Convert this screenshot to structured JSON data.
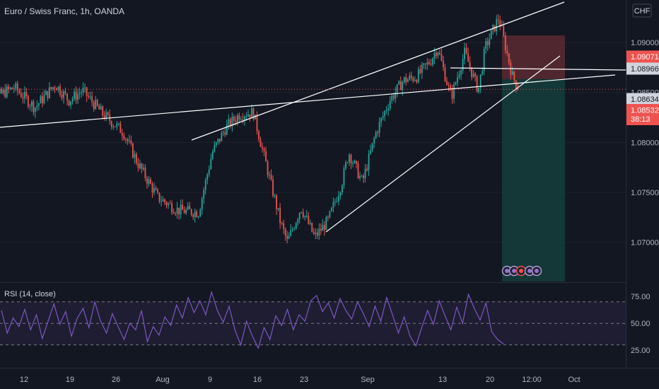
{
  "header": {
    "title": "Euro / Swiss Franc, 1h, OANDA",
    "currency": "CHF"
  },
  "colors": {
    "background": "#131722",
    "up": "#26a69a",
    "down": "#ef5350",
    "rsi_line": "#7e57c2",
    "trendline": "#ffffff",
    "current_price_line": "#ef5350",
    "stop_zone": "#5d2a31",
    "target_zone": "#153b3a"
  },
  "chart_data": [
    {
      "type": "candlestick",
      "title": "Euro / Swiss Franc, 1h, OANDA",
      "x_tick_labels": [
        "12",
        "19",
        "26",
        "Aug",
        "9",
        "16",
        "23",
        "Sep",
        "13",
        "20",
        "12:00",
        "Oct"
      ],
      "y_tick_labels": [
        "1.07000",
        "1.07500",
        "1.08000",
        "1.08500",
        "1.09000"
      ],
      "ylim": [
        1.0665,
        1.0927
      ],
      "price_labels": [
        {
          "name": "stop-level",
          "value": "1.09071",
          "color": "#ef5350"
        },
        {
          "name": "horizontal-line",
          "value": "1.08966",
          "color": "#d1d4dc"
        },
        {
          "name": "entry-level",
          "value": "1.08634",
          "color": "#d1d4dc"
        },
        {
          "name": "last-price",
          "value": "1.08532",
          "color": "#ef5350"
        }
      ],
      "countdown": "38:13",
      "close_path": [
        {
          "x": "Jul 06",
          "y": 1.09
        },
        {
          "x": "Jul 08",
          "y": 1.0845
        },
        {
          "x": "Jul 11",
          "y": 1.0855
        },
        {
          "x": "Jul 14",
          "y": 1.0835
        },
        {
          "x": "Jul 17",
          "y": 1.0858
        },
        {
          "x": "Jul 19",
          "y": 1.0842
        },
        {
          "x": "Jul 21",
          "y": 1.0852
        },
        {
          "x": "Jul 24",
          "y": 1.0828
        },
        {
          "x": "Jul 27",
          "y": 1.081
        },
        {
          "x": "Jul 29",
          "y": 1.078
        },
        {
          "x": "Aug 01",
          "y": 1.0745
        },
        {
          "x": "Aug 04",
          "y": 1.0732
        },
        {
          "x": "Aug 07",
          "y": 1.073
        },
        {
          "x": "Aug 09",
          "y": 1.079
        },
        {
          "x": "Aug 11",
          "y": 1.0815
        },
        {
          "x": "Aug 13",
          "y": 1.0828
        },
        {
          "x": "Aug 15",
          "y": 1.083
        },
        {
          "x": "Aug 17",
          "y": 1.0775
        },
        {
          "x": "Aug 19",
          "y": 1.072
        },
        {
          "x": "Aug 20",
          "y": 1.07
        },
        {
          "x": "Aug 22",
          "y": 1.0735
        },
        {
          "x": "Aug 24",
          "y": 1.0705
        },
        {
          "x": "Aug 26",
          "y": 1.0722
        },
        {
          "x": "Aug 28",
          "y": 1.076
        },
        {
          "x": "Aug 29",
          "y": 1.079
        },
        {
          "x": "Aug 31",
          "y": 1.076
        },
        {
          "x": "Sep 02",
          "y": 1.081
        },
        {
          "x": "Sep 04",
          "y": 1.0842
        },
        {
          "x": "Sep 06",
          "y": 1.0862
        },
        {
          "x": "Sep 08",
          "y": 1.0866
        },
        {
          "x": "Sep 10",
          "y": 1.0882
        },
        {
          "x": "Sep 11",
          "y": 1.0895
        },
        {
          "x": "Sep 13",
          "y": 1.0845
        },
        {
          "x": "Sep 15",
          "y": 1.089
        },
        {
          "x": "Sep 17",
          "y": 1.0852
        },
        {
          "x": "Sep 18",
          "y": 1.0895
        },
        {
          "x": "Sep 20",
          "y": 1.0925
        },
        {
          "x": "Sep 21",
          "y": 1.0895
        },
        {
          "x": "Sep 22",
          "y": 1.0866
        },
        {
          "x": "Sep 23",
          "y": 1.0853
        }
      ],
      "trade": {
        "entry": 1.08634,
        "stop": 1.09071,
        "target_low": 1.0665
      },
      "horizontal_line": 1.08966
    },
    {
      "type": "line",
      "title": "RSI (14, close)",
      "y_tick_labels": [
        "25.00",
        "50.00",
        "75.00"
      ],
      "ylim": [
        10,
        85
      ],
      "bands": [
        30,
        50,
        70
      ],
      "series": [
        {
          "values": [
            62,
            41,
            55,
            47,
            63,
            44,
            58,
            36,
            52,
            68,
            49,
            61,
            38,
            55,
            64,
            46,
            70,
            52,
            41,
            59,
            47,
            35,
            50,
            44,
            62,
            33,
            47,
            39,
            56,
            48,
            67,
            55,
            74,
            60,
            71,
            58,
            79,
            62,
            51,
            66,
            44,
            30,
            52,
            38,
            27,
            46,
            35,
            57,
            48,
            63,
            44,
            58,
            52,
            71,
            76,
            61,
            69,
            55,
            73,
            62,
            54,
            70,
            59,
            47,
            66,
            52,
            74,
            58,
            41,
            56,
            38,
            29,
            46,
            62,
            49,
            71,
            57,
            44,
            65,
            50,
            77,
            64,
            53,
            69,
            42,
            35,
            31
          ]
        }
      ]
    }
  ]
}
